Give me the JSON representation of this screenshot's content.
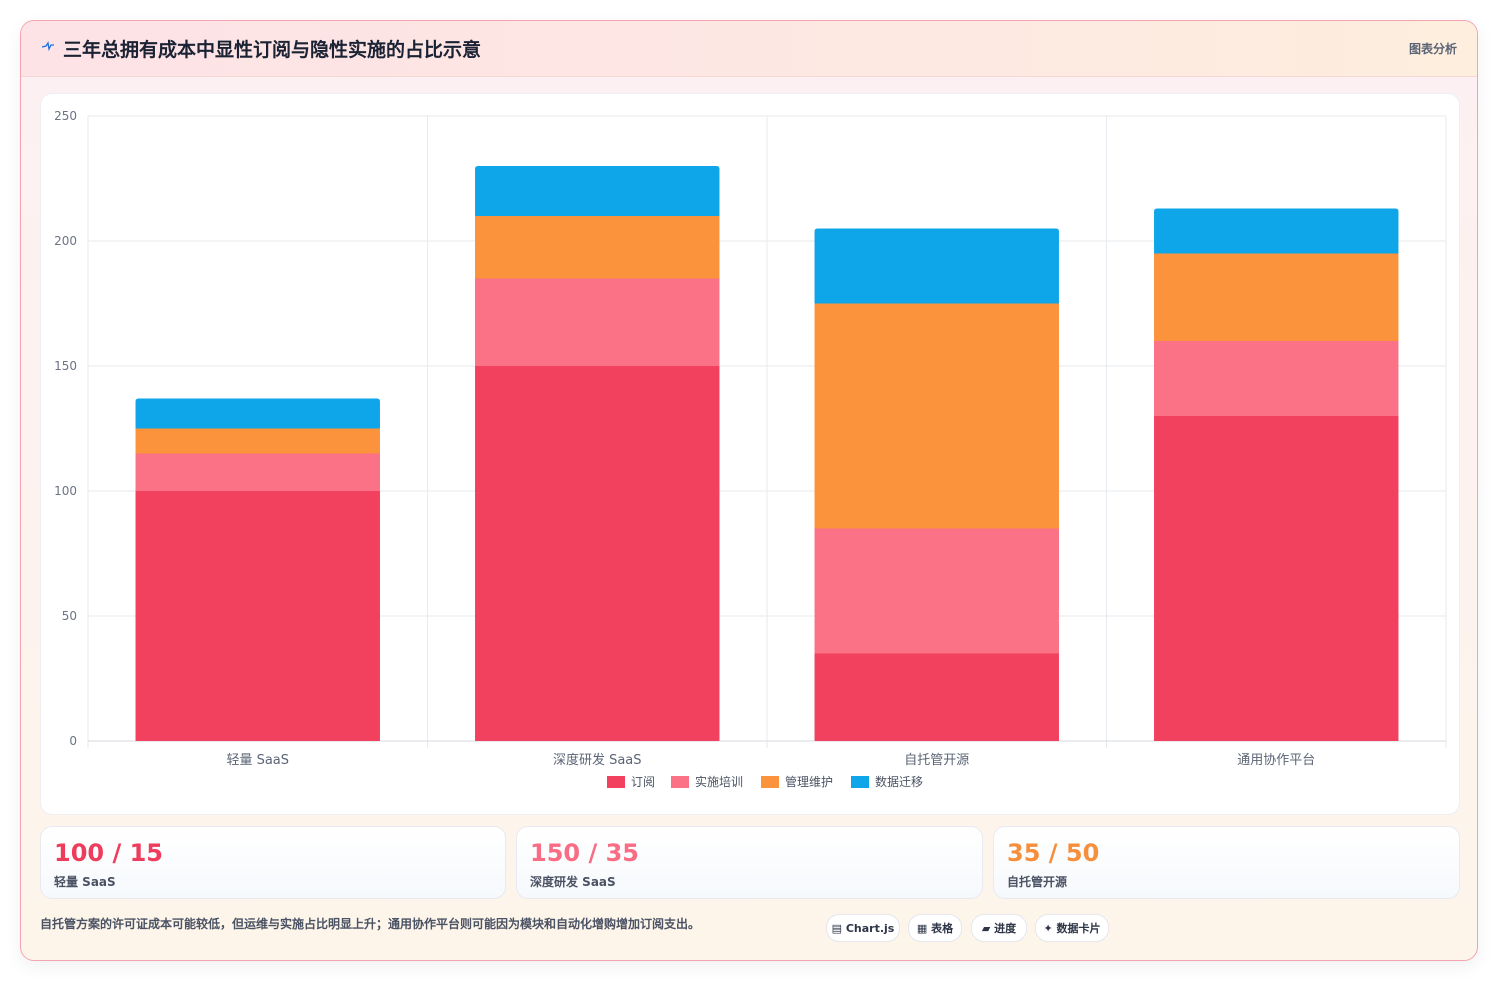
{
  "header": {
    "title": "三年总拥有成本中显性订阅与隐性实施的占比示意",
    "tag": "图表分析",
    "accent": "#1d6fe0"
  },
  "chart_data": {
    "type": "bar",
    "stacked": true,
    "categories": [
      "轻量 SaaS",
      "深度研发 SaaS",
      "自托管开源",
      "通用协作平台"
    ],
    "series": [
      {
        "name": "订阅",
        "color": "#f2415f",
        "values": [
          100,
          150,
          35,
          130
        ]
      },
      {
        "name": "实施培训",
        "color": "#fb7185",
        "values": [
          15,
          35,
          50,
          30
        ]
      },
      {
        "name": "管理维护",
        "color": "#fb923c",
        "values": [
          10,
          25,
          90,
          35
        ]
      },
      {
        "name": "数据迁移",
        "color": "#0ea5e9",
        "values": [
          12,
          20,
          30,
          18
        ]
      }
    ],
    "ylim": [
      0,
      250
    ],
    "yticks": [
      "0",
      "50",
      "100",
      "150",
      "200",
      "250"
    ],
    "grid": true,
    "legend_position": "bottom"
  },
  "stats": [
    {
      "value": "100 / 15",
      "label": "轻量 SaaS",
      "color": "#ee3c5c"
    },
    {
      "value": "150 / 35",
      "label": "深度研发 SaaS",
      "color": "#f86c84"
    },
    {
      "value": "35 / 50",
      "label": "自托管开源",
      "color": "#f58f3c"
    }
  ],
  "footer": {
    "note": "自托管方案的许可证成本可能较低，但运维与实施占比明显上升；通用协作平台则可能因为模块和自动化增购增加订阅支出。",
    "pills": [
      "▤ Chart.js",
      "▦ 表格",
      "▰ 进度",
      "✦ 数据卡片"
    ]
  }
}
